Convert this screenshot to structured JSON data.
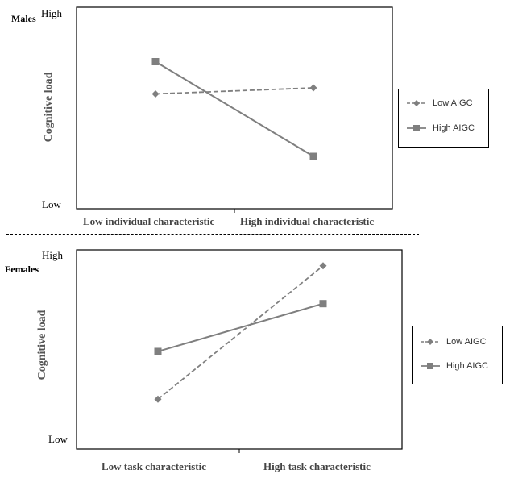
{
  "chart_data": [
    {
      "type": "line",
      "panel_label": "Males",
      "categories": [
        "Low individual characteristic",
        "High individual characteristic"
      ],
      "yticks": [
        "High",
        "Low"
      ],
      "ylabel": "Cognitive  load",
      "ylim": [
        0,
        10
      ],
      "series": [
        {
          "name": "Low AIGC",
          "values": [
            5.7,
            6.0
          ],
          "style": "dashed",
          "marker": "diamond",
          "color": "#7f7f7f"
        },
        {
          "name": "High AIGC",
          "values": [
            7.3,
            2.6
          ],
          "style": "solid",
          "marker": "square",
          "color": "#7f7f7f"
        }
      ],
      "legend_position": "right",
      "grid": false
    },
    {
      "type": "line",
      "panel_label": "Females",
      "categories": [
        "Low task characteristic",
        "High task characteristic"
      ],
      "yticks": [
        "High",
        "Low"
      ],
      "ylabel": "Cognitive load",
      "ylim": [
        0,
        10
      ],
      "series": [
        {
          "name": "Low AIGC",
          "values": [
            2.5,
            9.2
          ],
          "style": "dashed",
          "marker": "diamond",
          "color": "#7f7f7f"
        },
        {
          "name": "High AIGC",
          "values": [
            4.9,
            7.3
          ],
          "style": "solid",
          "marker": "square",
          "color": "#7f7f7f"
        }
      ],
      "legend_position": "right",
      "grid": false
    }
  ]
}
